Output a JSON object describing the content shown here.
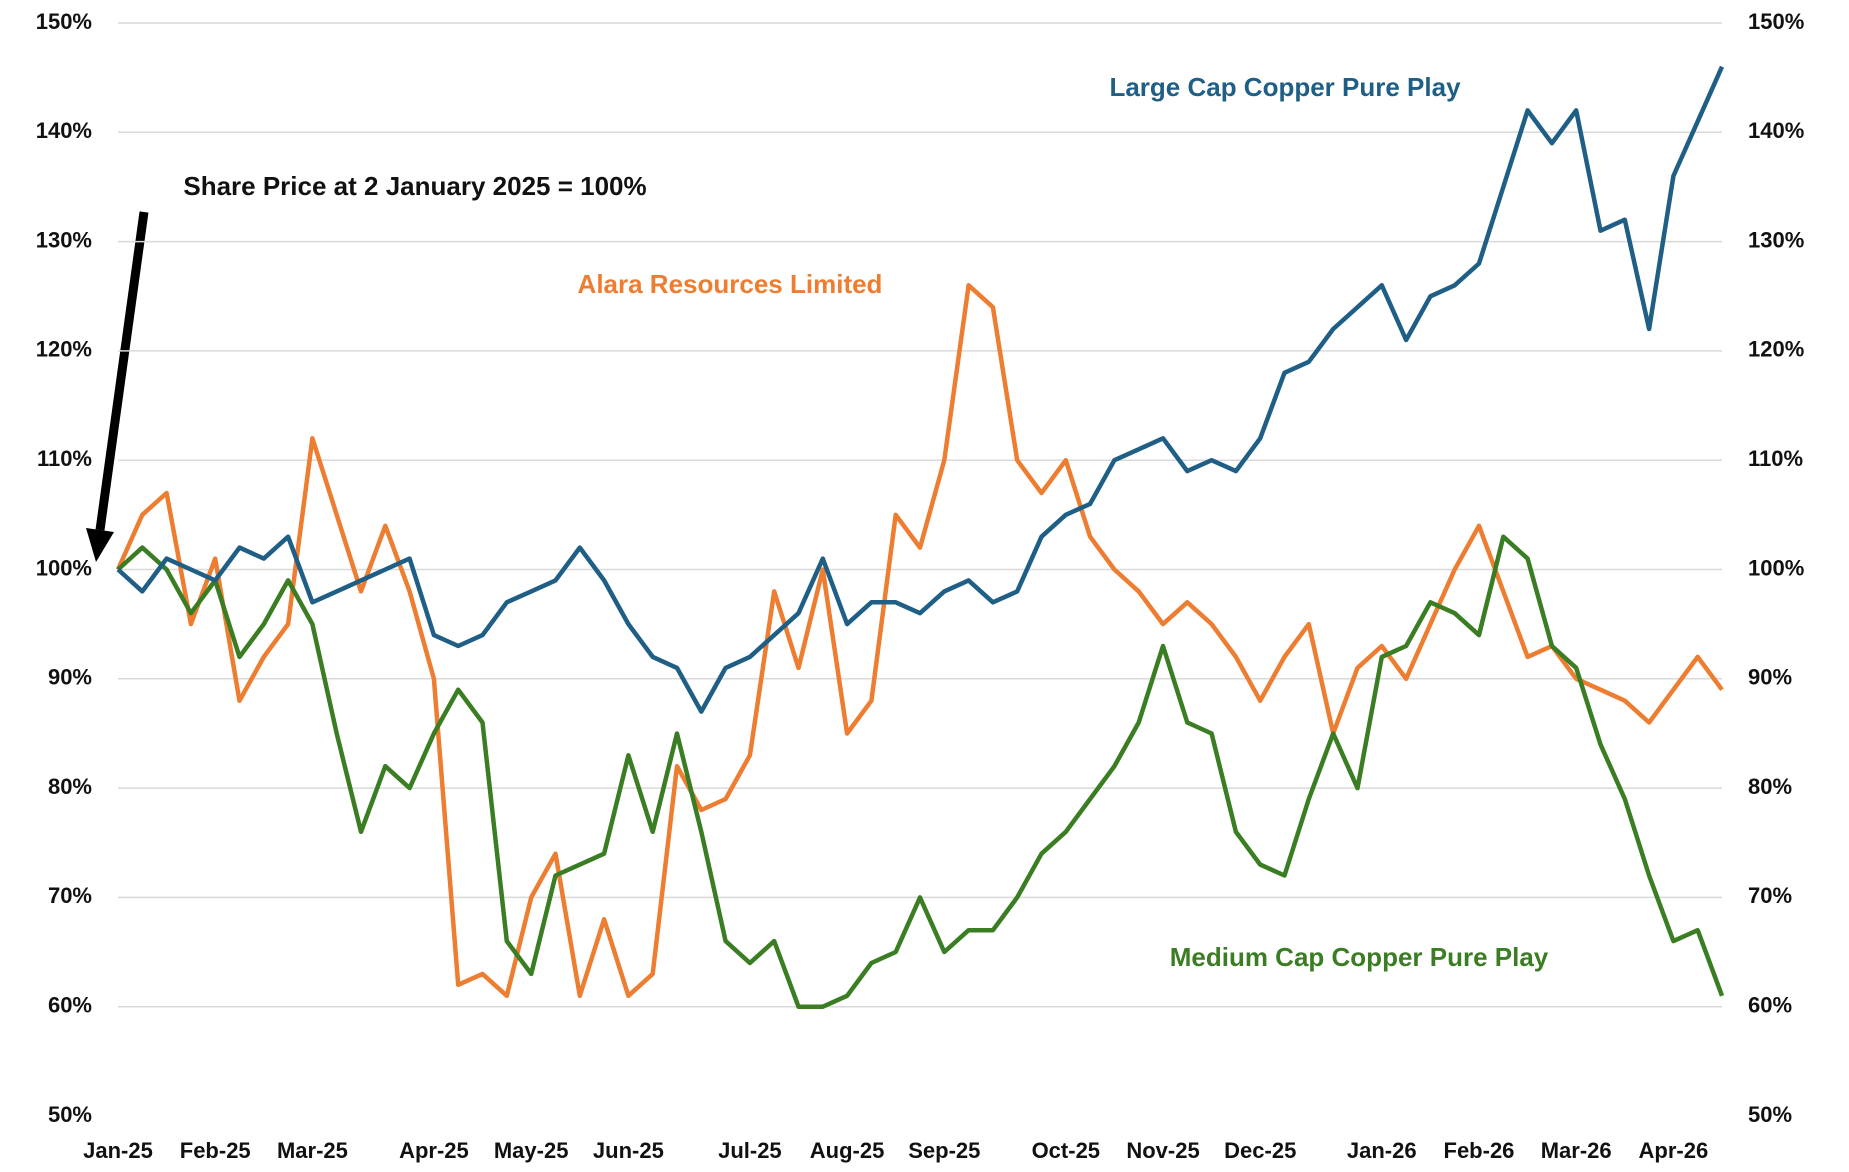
{
  "chart_data": {
    "type": "line",
    "annotation": "Share Price at 2 January 2025 = 100%",
    "categories": [
      "Jan-25",
      null,
      null,
      null,
      "Feb-25",
      null,
      null,
      null,
      "Mar-25",
      null,
      null,
      null,
      null,
      "Apr-25",
      null,
      null,
      null,
      "May-25",
      null,
      null,
      null,
      "Jun-25",
      null,
      null,
      null,
      null,
      "Jul-25",
      null,
      null,
      null,
      "Aug-25",
      null,
      null,
      null,
      "Sep-25",
      null,
      null,
      null,
      null,
      "Oct-25",
      null,
      null,
      null,
      "Nov-25",
      null,
      null,
      null,
      "Dec-25",
      null,
      null,
      null,
      null,
      "Jan-26",
      null,
      null,
      null,
      "Feb-26",
      null,
      null,
      null,
      "Mar-26",
      null,
      null,
      null,
      "Apr-26",
      null,
      null
    ],
    "series": [
      {
        "name": "Large Cap Copper Pure Play",
        "color": "#1f5f86",
        "values": [
          100,
          98,
          101,
          100,
          99,
          102,
          101,
          103,
          97,
          98,
          99,
          100,
          101,
          94,
          93,
          94,
          97,
          98,
          99,
          102,
          99,
          95,
          92,
          91,
          87,
          91,
          92,
          94,
          96,
          101,
          95,
          97,
          97,
          96,
          98,
          99,
          97,
          98,
          103,
          105,
          106,
          110,
          111,
          112,
          109,
          110,
          109,
          112,
          118,
          119,
          122,
          124,
          126,
          121,
          125,
          126,
          128,
          135,
          142,
          139,
          142,
          131,
          132,
          122,
          136,
          141,
          146
        ]
      },
      {
        "name": "Alara Resources Limited",
        "color": "#ed7d31",
        "values": [
          100,
          105,
          107,
          95,
          101,
          88,
          92,
          95,
          112,
          105,
          98,
          104,
          98,
          90,
          62,
          63,
          61,
          70,
          74,
          61,
          68,
          61,
          63,
          82,
          78,
          79,
          83,
          98,
          91,
          100,
          85,
          88,
          105,
          102,
          110,
          126,
          124,
          110,
          107,
          110,
          103,
          100,
          98,
          95,
          97,
          95,
          92,
          88,
          92,
          95,
          85,
          91,
          93,
          90,
          95,
          100,
          104,
          98,
          92,
          93,
          90,
          89,
          88,
          86,
          89,
          92,
          89
        ]
      },
      {
        "name": "Medium Cap Copper Pure Play",
        "color": "#3a7d23",
        "values": [
          100,
          102,
          100,
          96,
          99,
          92,
          95,
          99,
          95,
          85,
          76,
          82,
          80,
          85,
          89,
          86,
          66,
          63,
          72,
          73,
          74,
          83,
          76,
          85,
          76,
          66,
          64,
          66,
          60,
          60,
          61,
          64,
          65,
          70,
          65,
          67,
          67,
          70,
          74,
          76,
          79,
          82,
          86,
          93,
          86,
          85,
          76,
          73,
          72,
          79,
          85,
          80,
          92,
          93,
          97,
          96,
          94,
          103,
          101,
          93,
          91,
          84,
          79,
          72,
          66,
          67,
          61
        ]
      }
    ],
    "ylim": [
      50,
      150
    ],
    "yticks": [
      {
        "value": 50,
        "label": "50%"
      },
      {
        "value": 60,
        "label": "60%"
      },
      {
        "value": 70,
        "label": "70%"
      },
      {
        "value": 80,
        "label": "80%"
      },
      {
        "value": 90,
        "label": "90%"
      },
      {
        "value": 100,
        "label": "100%"
      },
      {
        "value": 110,
        "label": "110%"
      },
      {
        "value": 120,
        "label": "120%"
      },
      {
        "value": 130,
        "label": "130%"
      },
      {
        "value": 140,
        "label": "140%"
      },
      {
        "value": 150,
        "label": "150%"
      }
    ],
    "grid": true
  }
}
